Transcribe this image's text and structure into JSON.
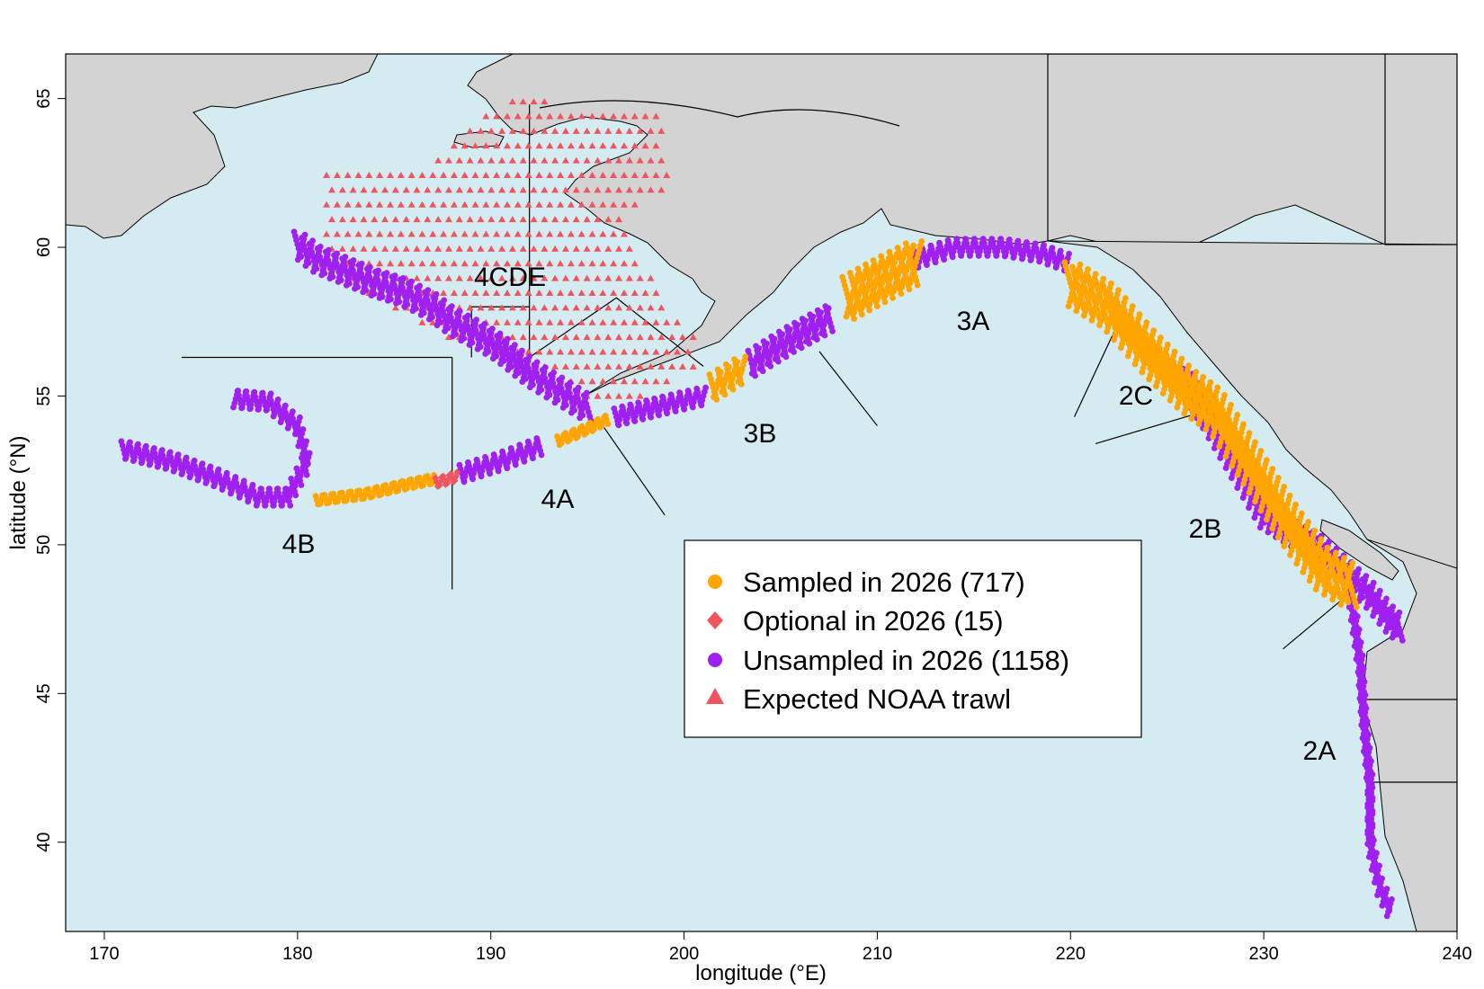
{
  "map": {
    "axes": {
      "xlabel": "longitude (°E)",
      "ylabel": "latitude (°N)",
      "xlim": [
        168,
        240
      ],
      "ylim": [
        37,
        66.5
      ],
      "x_ticks": [
        "170",
        "180",
        "190",
        "200",
        "210",
        "220",
        "230",
        "240"
      ],
      "y_ticks": [
        "40",
        "45",
        "50",
        "55",
        "60",
        "65"
      ]
    },
    "colors": {
      "ocean": "#d4ebf1",
      "land": "#d3d3d3",
      "sampled": "#ffa500",
      "optional": "#f0555f",
      "unsampled": "#a020f0",
      "noaa_trawl": "#f0555f"
    },
    "regulatory_areas": [
      "4CDE",
      "3A",
      "2C",
      "3B",
      "4A",
      "2B",
      "4B",
      "2A"
    ],
    "legend": {
      "placement": "center-bottom",
      "items": [
        {
          "label": "Sampled in 2026 (717)",
          "symbol": "circle",
          "color": "#ffa500"
        },
        {
          "label": "Optional in 2026 (15)",
          "symbol": "diamond",
          "color": "#f0555f"
        },
        {
          "label": "Unsampled in 2026 (1158)",
          "symbol": "circle",
          "color": "#a020f0"
        },
        {
          "label": "Expected NOAA trawl",
          "symbol": "triangle",
          "color": "#f0555f"
        }
      ]
    }
  },
  "chart_data": {
    "type": "scatter",
    "xlim": [
      168,
      240
    ],
    "ylim": [
      37,
      66.5
    ],
    "xlabel": "longitude (°E)",
    "ylabel": "latitude (°N)",
    "series": [
      {
        "name": "Sampled in 2026 (717)",
        "segments": [
          [
            [
              181.0,
              51.5
            ],
            [
              183.5,
              51.7
            ],
            [
              185.5,
              52.0
            ],
            [
              187.0,
              52.2
            ]
          ],
          [
            [
              193.5,
              53.5
            ],
            [
              195.0,
              53.9
            ],
            [
              196.0,
              54.2
            ]
          ],
          [
            [
              201.5,
              55.3
            ],
            [
              203.0,
              55.9
            ]
          ],
          [
            [
              208.5,
              58.3
            ],
            [
              210.5,
              59.0
            ],
            [
              212.0,
              59.5
            ]
          ],
          [
            [
              220.0,
              58.8
            ],
            [
              222.0,
              58.0
            ],
            [
              224.0,
              56.5
            ],
            [
              226.0,
              55.2
            ],
            [
              227.5,
              54.5
            ],
            [
              228.5,
              53.5
            ],
            [
              230.0,
              52.0
            ],
            [
              231.5,
              50.5
            ],
            [
              233.0,
              49.2
            ],
            [
              234.5,
              48.6
            ]
          ]
        ]
      },
      {
        "name": "Optional in 2026 (15)",
        "segments": [
          [
            [
              187.2,
              52.1
            ],
            [
              187.8,
              52.2
            ],
            [
              188.2,
              52.3
            ]
          ]
        ]
      },
      {
        "name": "Unsampled in 2026 (1158)",
        "segments": [
          [
            [
              171.0,
              53.2
            ],
            [
              173.5,
              52.8
            ],
            [
              176.0,
              52.2
            ],
            [
              178.0,
              51.6
            ],
            [
              179.5,
              51.6
            ],
            [
              180.5,
              52.8
            ],
            [
              180.0,
              54.0
            ],
            [
              178.5,
              54.8
            ],
            [
              176.8,
              54.9
            ]
          ],
          [
            [
              188.5,
              52.4
            ],
            [
              190.5,
              52.8
            ],
            [
              192.5,
              53.3
            ]
          ],
          [
            [
              196.5,
              54.3
            ],
            [
              199.0,
              54.7
            ],
            [
              201.0,
              55.0
            ]
          ],
          [
            [
              203.5,
              56.1
            ],
            [
              205.5,
              56.9
            ],
            [
              207.5,
              57.6
            ]
          ],
          [
            [
              212.0,
              59.6
            ],
            [
              214.0,
              60.0
            ],
            [
              216.5,
              60.0
            ],
            [
              218.5,
              59.8
            ],
            [
              219.8,
              59.5
            ]
          ],
          [
            [
              195.0,
              54.6
            ],
            [
              193.5,
              55.2
            ],
            [
              192.0,
              55.8
            ],
            [
              190.5,
              56.6
            ],
            [
              189.5,
              57.0
            ],
            [
              188.0,
              57.5
            ],
            [
              187.0,
              58.0
            ],
            [
              185.5,
              58.5
            ],
            [
              184.0,
              58.8
            ],
            [
              182.5,
              59.2
            ],
            [
              181.0,
              59.6
            ],
            [
              180.0,
              60.1
            ]
          ],
          [
            [
              226.0,
              55.5
            ],
            [
              230.0,
              51.0
            ],
            [
              233.0,
              49.8
            ],
            [
              235.5,
              48.3
            ],
            [
              236.5,
              47.5
            ],
            [
              237.0,
              47.2
            ]
          ],
          [
            [
              234.5,
              48.4
            ],
            [
              235.0,
              46.0
            ],
            [
              235.2,
              44.0
            ],
            [
              235.5,
              42.0
            ],
            [
              235.5,
              40.0
            ],
            [
              236.0,
              38.5
            ],
            [
              236.5,
              37.8
            ]
          ]
        ]
      },
      {
        "name": "Expected NOAA trawl",
        "grid": {
          "lon_range": [
            181.5,
            199.5
          ],
          "lat_range": [
            54.5,
            65.3
          ],
          "step": 0.55
        }
      }
    ],
    "boundary_lines": [
      [
        [
          174.0,
          56.3
        ],
        [
          186.0,
          56.3
        ],
        [
          188.0,
          56.3
        ]
      ],
      [
        [
          188.0,
          48.5
        ],
        [
          188.0,
          56.3
        ]
      ],
      [
        [
          192.0,
          56.3
        ],
        [
          192.0,
          64.8
        ]
      ],
      [
        [
          192.0,
          56.3
        ],
        [
          196.5,
          58.3
        ],
        [
          201.0,
          56.0
        ]
      ],
      [
        [
          195.8,
          54.0
        ],
        [
          199.0,
          51.0
        ]
      ],
      [
        [
          207.0,
          56.5
        ],
        [
          210.0,
          54.0
        ]
      ],
      [
        [
          222.5,
          57.5
        ],
        [
          220.2,
          54.3
        ]
      ],
      [
        [
          221.3,
          53.4
        ],
        [
          227.0,
          54.5
        ]
      ],
      [
        [
          234.5,
          48.4
        ],
        [
          231.0,
          46.5
        ]
      ],
      [
        [
          189.0,
          56.3
        ],
        [
          189.0,
          58.0
        ],
        [
          192.0,
          58.0
        ]
      ]
    ]
  }
}
